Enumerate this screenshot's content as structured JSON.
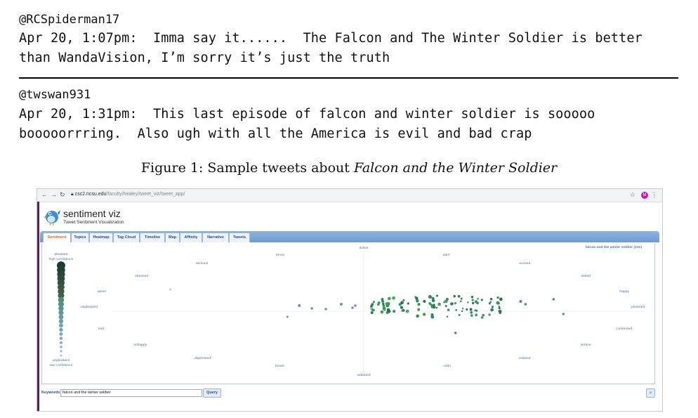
{
  "tweets": [
    {
      "handle": "@RCSpiderman17",
      "line1": "Apr 20, 1:07pm:  Imma say it......  The Falcon and The Winter Soldier is better",
      "line2": "than WandaVision, I’m sorry it’s just the truth"
    },
    {
      "handle": "@twswan931",
      "line1": "Apr 20, 1:31pm:  This last episode of falcon and winter soldier is sooooo",
      "line2": "booooorrring.  Also ugh with all the America is evil and bad crap"
    }
  ],
  "caption": {
    "prefix": "Figure 1: Sample tweets about ",
    "italic": "Falcon and the Winter Soldier"
  },
  "browser": {
    "url_host": "csc2.ncsu.edu",
    "url_path": "/faculty/healey/tweet_viz/tweet_app/",
    "profile_initial": "M",
    "icons": [
      "back-icon",
      "forward-icon",
      "reload-icon",
      "lock-icon",
      "star-icon",
      "profile-icon",
      "menu-icon"
    ]
  },
  "app": {
    "title": "sentiment viz",
    "subtitle": "Tweet Sentiment Visualization",
    "tabs": [
      "Sentiment",
      "Topics",
      "Heatmap",
      "Tag Cloud",
      "Timeline",
      "Map",
      "Affinity",
      "Narrative",
      "Tweets"
    ],
    "active_tab": "Sentiment",
    "legend_top": [
      "pleasant",
      "high confidence"
    ],
    "legend_bottom": [
      "unpleasant",
      "low confidence"
    ],
    "query_label": "falcon and the winter soldier (131)",
    "axis_labels": {
      "top": "active",
      "bottom": "subdued",
      "left": "unpleasant",
      "right": "pleasant",
      "tense": "tense",
      "nervous": "nervous",
      "stressed": "stressed",
      "upset": "upset",
      "sad": "sad",
      "unhappy": "unhappy",
      "depressed": "depressed",
      "bored": "bored",
      "alert": "alert",
      "excited": "excited",
      "elated": "elated",
      "happy": "happy",
      "contented": "contented",
      "serene": "serene",
      "relaxed": "relaxed",
      "calm": "calm"
    },
    "keywords_label": "Keywords",
    "keywords_value": "falcon and the winter soldier",
    "query_button": "Query",
    "accent": "#6f9bd1",
    "tab_active_color": "#d2691e"
  }
}
